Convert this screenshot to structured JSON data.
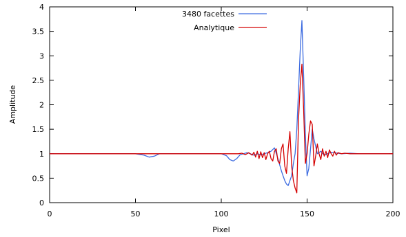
{
  "chart_data": {
    "type": "line",
    "xlabel": "Pixel",
    "ylabel": "Amplitude",
    "xlim": [
      0,
      200
    ],
    "ylim": [
      0,
      4
    ],
    "x_ticks": [
      0,
      50,
      100,
      150,
      200
    ],
    "y_ticks": [
      0,
      0.5,
      1,
      1.5,
      2,
      2.5,
      3,
      3.5,
      4
    ],
    "x_tick_labels": [
      "0",
      "50",
      "100",
      "150",
      "200"
    ],
    "y_tick_labels": [
      "0",
      "0.5",
      "1",
      "1.5",
      "2",
      "2.5",
      "3",
      "3.5",
      "4"
    ],
    "grid": false,
    "legend_position": "top-center",
    "series": [
      {
        "name": "3480 facettes",
        "color": "#3c6be0",
        "x": [
          0,
          40,
          50,
          55,
          58,
          61,
          64,
          67,
          72,
          80,
          90,
          95,
          100,
          103,
          105,
          107,
          109,
          111,
          113,
          115,
          117,
          119,
          121,
          123,
          125,
          127,
          129,
          131,
          133,
          135,
          136,
          137,
          138,
          139,
          140,
          141,
          142,
          143,
          144,
          145,
          146,
          147,
          148,
          149,
          150,
          151,
          152,
          153,
          154,
          156,
          158,
          160,
          164,
          170,
          175,
          180,
          200
        ],
        "values": [
          1.0,
          1.0,
          1.0,
          0.97,
          0.93,
          0.95,
          1.0,
          1.0,
          1.0,
          1.0,
          1.0,
          1.0,
          1.0,
          0.96,
          0.88,
          0.85,
          0.9,
          0.98,
          1.0,
          1.02,
          1.0,
          0.97,
          1.0,
          0.98,
          1.0,
          1.02,
          1.05,
          1.12,
          0.9,
          0.65,
          0.55,
          0.45,
          0.38,
          0.35,
          0.45,
          0.55,
          0.8,
          1.0,
          1.5,
          2.3,
          3.1,
          3.72,
          2.6,
          1.4,
          0.55,
          0.7,
          1.1,
          1.5,
          1.3,
          1.0,
          1.05,
          0.97,
          1.03,
          1.0,
          1.01,
          1.0,
          1.0
        ]
      },
      {
        "name": "Analytique",
        "color": "#d40000",
        "x": [
          0,
          50,
          100,
          110,
          112,
          114,
          116,
          118,
          119,
          120,
          121,
          122,
          123,
          124,
          125,
          126,
          127,
          128,
          129,
          130,
          131,
          132,
          133,
          134,
          135,
          136,
          137,
          138,
          139,
          140,
          141,
          142,
          143,
          144,
          145,
          146,
          147,
          148,
          149,
          150,
          151,
          152,
          153,
          154,
          155,
          156,
          157,
          158,
          159,
          160,
          161,
          162,
          163,
          164,
          165,
          166,
          167,
          168,
          170,
          172,
          175,
          200
        ],
        "values": [
          1.0,
          1.0,
          1.0,
          1.0,
          1.01,
          0.98,
          1.02,
          0.97,
          1.03,
          0.93,
          1.05,
          0.9,
          1.04,
          0.92,
          1.02,
          0.88,
          1.0,
          1.05,
          0.9,
          0.85,
          1.05,
          1.1,
          0.85,
          0.8,
          1.1,
          1.2,
          0.75,
          0.6,
          1.1,
          1.45,
          0.75,
          0.45,
          0.3,
          0.2,
          1.7,
          2.4,
          2.83,
          1.9,
          0.8,
          1.0,
          1.4,
          1.67,
          1.6,
          0.75,
          0.95,
          1.2,
          1.0,
          0.88,
          1.1,
          0.95,
          1.05,
          0.92,
          1.08,
          1.0,
          0.95,
          1.05,
          0.97,
          1.02,
          1.0,
          1.01,
          1.0,
          1.0
        ]
      }
    ]
  }
}
